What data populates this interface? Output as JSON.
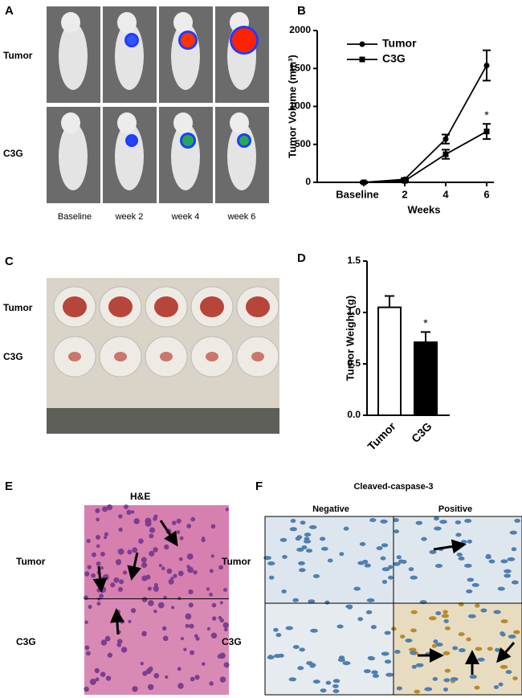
{
  "panels": {
    "a": {
      "label": "A",
      "rows": [
        "Tumor",
        "C3G"
      ],
      "columns": [
        "Baseline",
        "week 2",
        "week 4",
        "week 6"
      ]
    },
    "c": {
      "label": "C",
      "rows": [
        "Tumor",
        "C3G"
      ]
    },
    "e": {
      "label": "E",
      "title": "H&E",
      "rows": [
        "Tumor",
        "C3G"
      ]
    },
    "f": {
      "label": "F",
      "title": "Cleaved-caspase-3",
      "columns": [
        "Negative",
        "Positive"
      ],
      "rows": [
        "Tumor",
        "C3G"
      ]
    }
  },
  "chart_data": [
    {
      "type": "line",
      "panel_label": "B",
      "x_label": "Weeks",
      "y_label": "Tumor Volume (mm³)",
      "categories": [
        "Baseline",
        "2",
        "4",
        "6"
      ],
      "series": [
        {
          "name": "Tumor",
          "color": "#000000",
          "marker": "circle",
          "values": [
            0,
            40,
            570,
            1540
          ],
          "errors": [
            10,
            15,
            60,
            200
          ]
        },
        {
          "name": "C3G",
          "color": "#000000",
          "marker": "square",
          "values": [
            0,
            20,
            370,
            670
          ],
          "errors": [
            10,
            10,
            60,
            100
          ]
        }
      ],
      "annotation": "*",
      "ylim": [
        0,
        2000
      ],
      "yticks": [
        0,
        500,
        1000,
        1500,
        2000
      ],
      "legend": "top-left"
    },
    {
      "type": "bar",
      "panel_label": "D",
      "y_label": "Tumor Weight (g)",
      "categories": [
        "Tumor",
        "C3G"
      ],
      "values": [
        1.05,
        0.71
      ],
      "errors": [
        0.11,
        0.1
      ],
      "colors": [
        "#ffffff",
        "#000000"
      ],
      "annotation": "*",
      "ylim": [
        0,
        1.5
      ],
      "yticks": [
        {
          "value": 0,
          "label": "0.0"
        },
        {
          "value": 0.5,
          "label": "0.5"
        },
        {
          "value": 1,
          "label": "1.0"
        },
        {
          "value": 1.5,
          "label": "1.5"
        }
      ]
    }
  ]
}
